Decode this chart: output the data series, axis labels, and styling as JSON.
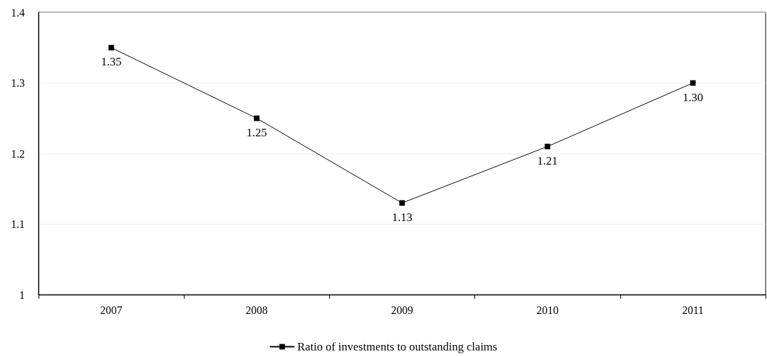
{
  "chart_data": {
    "type": "line",
    "categories": [
      "2007",
      "2008",
      "2009",
      "2010",
      "2011"
    ],
    "series": [
      {
        "name": "Ratio of investments to outstanding claims",
        "color": "#000000",
        "values": [
          1.35,
          1.25,
          1.13,
          1.21,
          1.3
        ],
        "value_labels": [
          "1.35",
          "1.25",
          "1.13",
          "1.21",
          "1.30"
        ]
      }
    ],
    "ylim": [
      1,
      1.4
    ],
    "yticks": [
      1,
      1.1,
      1.2,
      1.3,
      1.4
    ],
    "grid": "y",
    "legend": "bottom",
    "marker": "square",
    "line_style": "solid"
  }
}
